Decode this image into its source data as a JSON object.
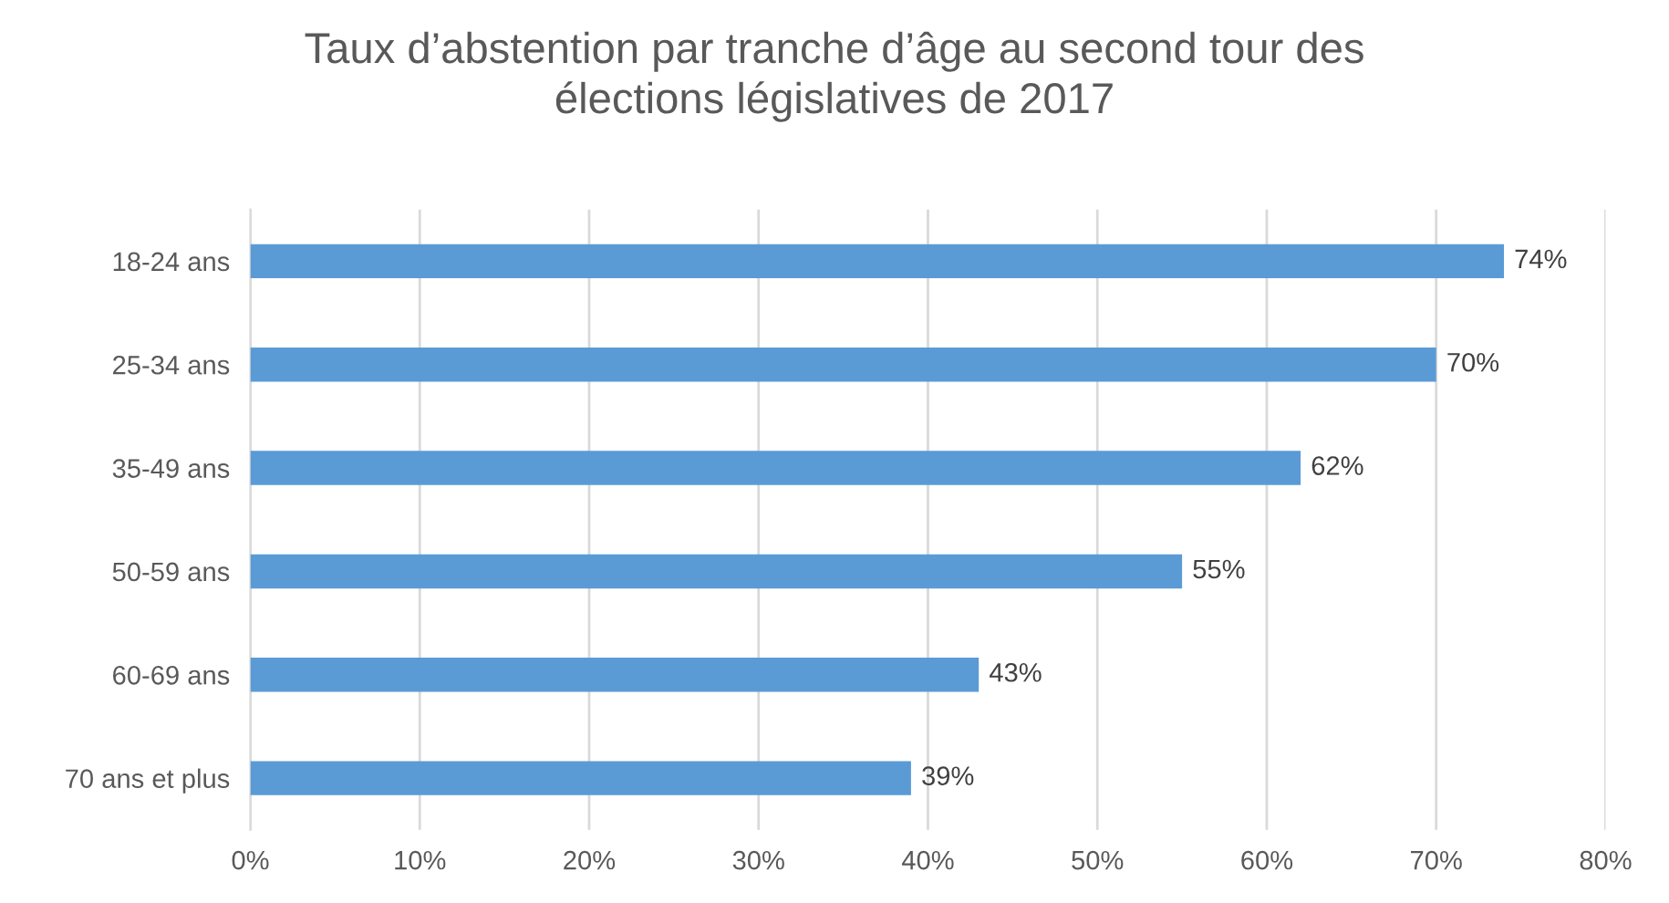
{
  "chart_data": {
    "type": "bar",
    "orientation": "horizontal",
    "title": "Taux d’abstention par tranche d’âge au second tour des\nélections législatives de 2017",
    "categories": [
      "18-24 ans",
      "25-34 ans",
      "35-49 ans",
      "50-59 ans",
      "60-69 ans",
      "70 ans et plus"
    ],
    "values": [
      74,
      70,
      62,
      55,
      43,
      39
    ],
    "value_labels": [
      "74%",
      "70%",
      "62%",
      "55%",
      "43%",
      "39%"
    ],
    "color": "#5b9bd5",
    "xlim": [
      0,
      80
    ],
    "xticks": [
      {
        "value": 0,
        "label": "0%"
      },
      {
        "value": 10,
        "label": "10%"
      },
      {
        "value": 20,
        "label": "20%"
      },
      {
        "value": 30,
        "label": "30%"
      },
      {
        "value": 40,
        "label": "40%"
      },
      {
        "value": 50,
        "label": "50%"
      },
      {
        "value": 60,
        "label": "60%"
      },
      {
        "value": 70,
        "label": "70%"
      },
      {
        "value": 80,
        "label": "80%"
      }
    ],
    "grid": "x",
    "legend": false
  }
}
